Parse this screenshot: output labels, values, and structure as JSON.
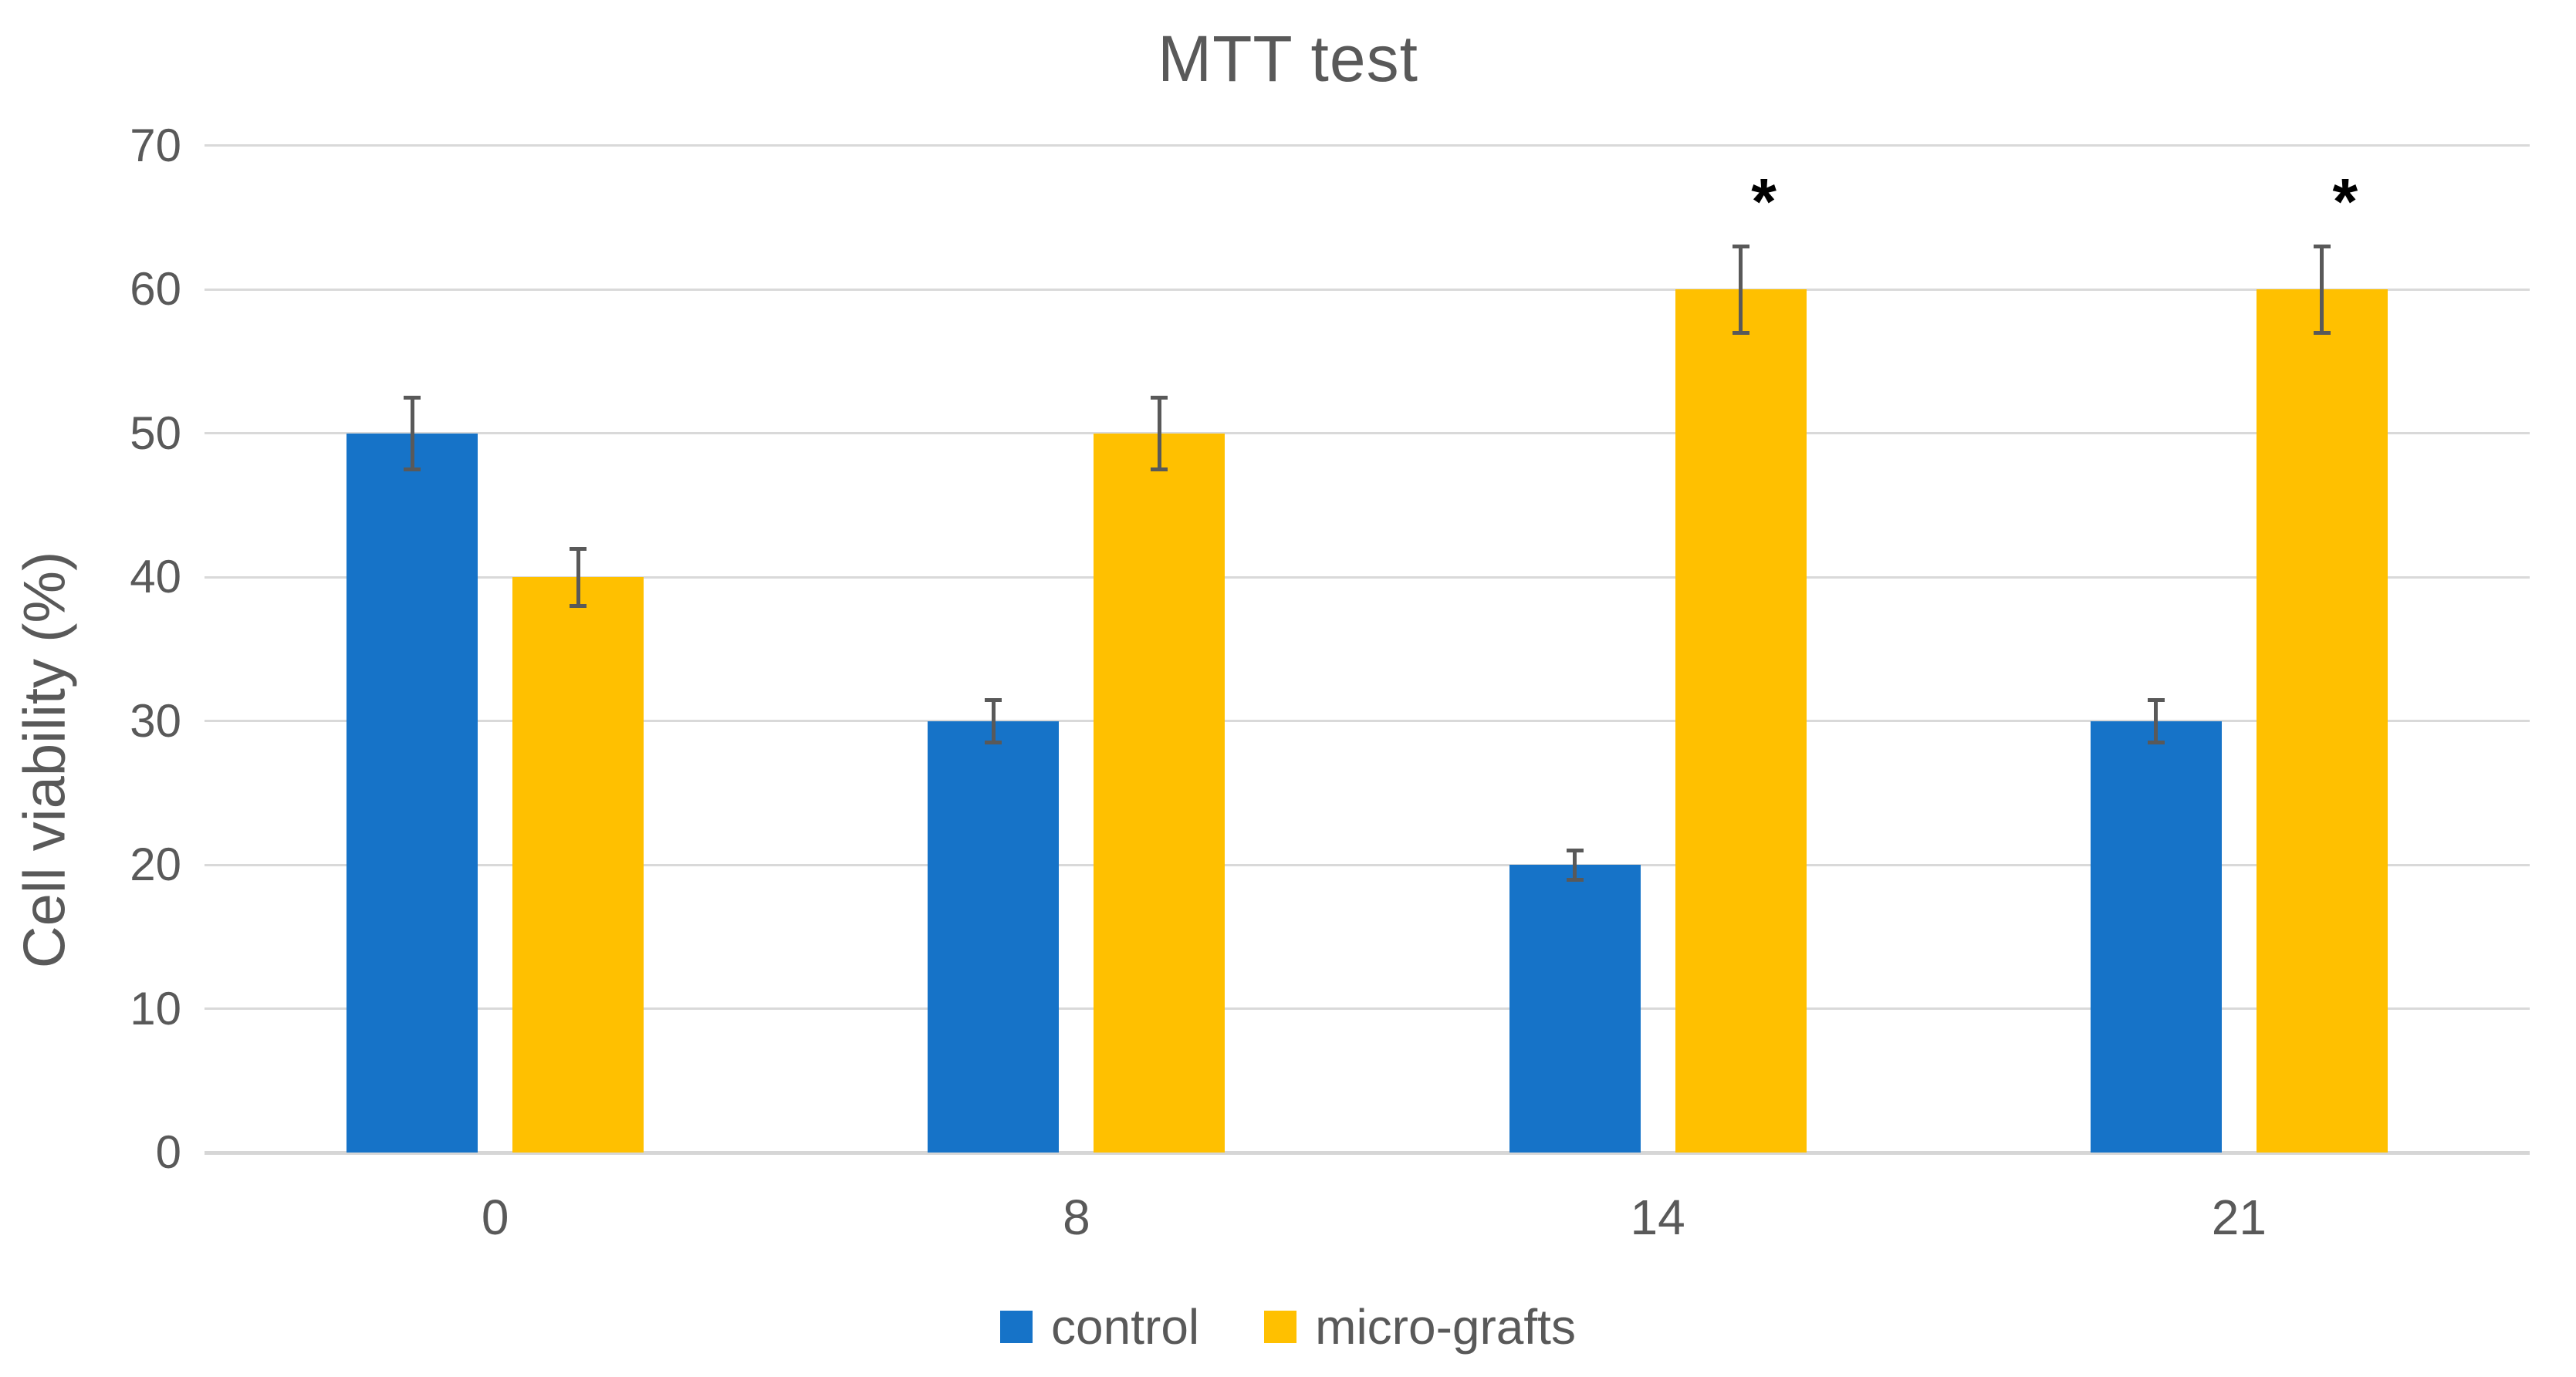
{
  "chart_data": {
    "type": "bar",
    "title": "MTT test",
    "xlabel": "",
    "ylabel": "Cell viability (%)",
    "categories": [
      "0",
      "8",
      "14",
      "21"
    ],
    "series": [
      {
        "name": "control",
        "color": "#1673C8",
        "values": [
          50,
          30,
          20,
          30
        ],
        "errors": [
          2.5,
          1.5,
          1,
          1.5
        ],
        "annotations": [
          "",
          "",
          "",
          ""
        ]
      },
      {
        "name": "micro-grafts",
        "color": "#FFC000",
        "values": [
          40,
          50,
          60,
          60
        ],
        "errors": [
          2,
          2.5,
          3,
          3
        ],
        "annotations": [
          "",
          "",
          "*",
          "*"
        ]
      }
    ],
    "ylim": [
      0,
      70
    ],
    "ytick_step": 10,
    "grid": true,
    "legend_position": "bottom",
    "colors": {
      "text": "#595959",
      "gridline": "#D9D9D9",
      "error_bar": "#595959",
      "annotation": "#000000"
    }
  }
}
